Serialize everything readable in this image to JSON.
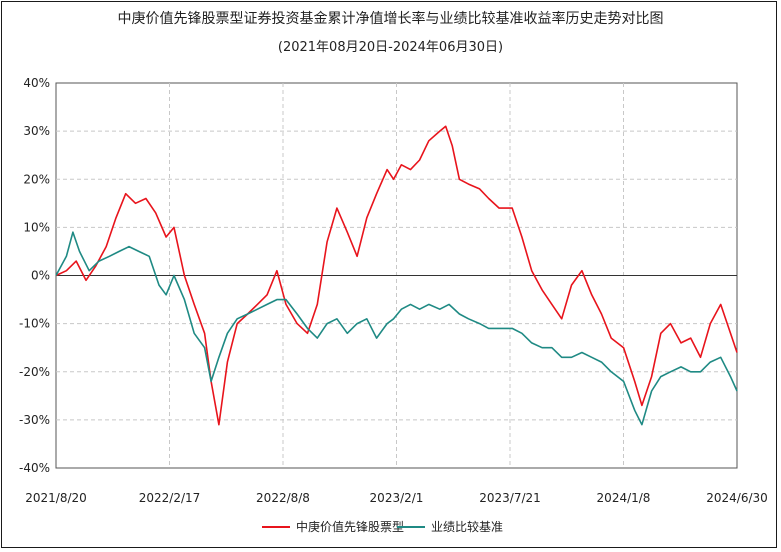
{
  "chart_data": {
    "type": "line",
    "title": "中庚价值先锋股票型证券投资基金累计净值增长率与业绩比较基准收益率历史走势对比图",
    "subtitle": "(2021年08月20日-2024年06月30日)",
    "xlabel": "",
    "ylabel": "",
    "x_ticks": [
      "2021/8/20",
      "2022/2/17",
      "2022/8/8",
      "2023/2/1",
      "2023/7/21",
      "2024/1/8",
      "2024/6/30"
    ],
    "x_range": [
      "2021-08-20",
      "2024-06-30"
    ],
    "y_ticks": [
      "40%",
      "30%",
      "20%",
      "10%",
      "0%",
      "-10%",
      "-20%",
      "-30%",
      "-40%"
    ],
    "ylim": [
      -40,
      40
    ],
    "grid": true,
    "legend_position": "bottom",
    "series": [
      {
        "name": "中庚价值先锋股票型",
        "color": "#e8141c",
        "x": [
          "2021-08-20",
          "2021-09-05",
          "2021-09-20",
          "2021-10-05",
          "2021-10-20",
          "2021-11-05",
          "2021-11-20",
          "2021-12-05",
          "2021-12-20",
          "2022-01-05",
          "2022-01-20",
          "2022-02-05",
          "2022-02-17",
          "2022-03-05",
          "2022-03-20",
          "2022-04-05",
          "2022-04-15",
          "2022-04-27",
          "2022-05-10",
          "2022-05-25",
          "2022-06-10",
          "2022-06-25",
          "2022-07-10",
          "2022-07-25",
          "2022-08-08",
          "2022-08-25",
          "2022-09-10",
          "2022-09-25",
          "2022-10-10",
          "2022-10-25",
          "2022-11-10",
          "2022-11-25",
          "2022-12-10",
          "2022-12-25",
          "2023-01-10",
          "2023-01-20",
          "2023-02-01",
          "2023-02-15",
          "2023-03-01",
          "2023-03-15",
          "2023-04-01",
          "2023-04-10",
          "2023-04-20",
          "2023-05-01",
          "2023-05-15",
          "2023-06-01",
          "2023-06-15",
          "2023-07-01",
          "2023-07-21",
          "2023-08-05",
          "2023-08-20",
          "2023-09-05",
          "2023-09-20",
          "2023-10-05",
          "2023-10-20",
          "2023-11-05",
          "2023-11-20",
          "2023-12-05",
          "2023-12-20",
          "2024-01-08",
          "2024-01-25",
          "2024-02-05",
          "2024-02-20",
          "2024-03-05",
          "2024-03-20",
          "2024-04-05",
          "2024-04-20",
          "2024-05-05",
          "2024-05-20",
          "2024-06-05",
          "2024-06-20",
          "2024-06-30"
        ],
        "values": [
          0,
          1,
          3,
          -1,
          2,
          6,
          12,
          17,
          15,
          16,
          13,
          8,
          10,
          0,
          -6,
          -12,
          -22,
          -31,
          -18,
          -10,
          -8,
          -6,
          -4,
          1,
          -6,
          -10,
          -12,
          -6,
          7,
          14,
          9,
          4,
          12,
          17,
          22,
          20,
          23,
          22,
          24,
          28,
          30,
          31,
          27,
          20,
          19,
          18,
          16,
          14,
          14,
          8,
          1,
          -3,
          -6,
          -9,
          -2,
          1,
          -4,
          -8,
          -13,
          -15,
          -22,
          -27,
          -21,
          -12,
          -10,
          -14,
          -13,
          -17,
          -10,
          -6,
          -12,
          -16
        ]
      },
      {
        "name": "业绩比较基准",
        "color": "#1f8a84",
        "x": [
          "2021-08-20",
          "2021-09-05",
          "2021-09-15",
          "2021-09-25",
          "2021-10-10",
          "2021-10-25",
          "2021-11-10",
          "2021-11-25",
          "2021-12-10",
          "2021-12-25",
          "2022-01-10",
          "2022-01-25",
          "2022-02-05",
          "2022-02-17",
          "2022-03-05",
          "2022-03-20",
          "2022-04-05",
          "2022-04-15",
          "2022-04-27",
          "2022-05-10",
          "2022-05-25",
          "2022-06-10",
          "2022-06-25",
          "2022-07-10",
          "2022-07-25",
          "2022-08-08",
          "2022-08-25",
          "2022-09-10",
          "2022-09-25",
          "2022-10-10",
          "2022-10-25",
          "2022-11-10",
          "2022-11-25",
          "2022-12-10",
          "2022-12-25",
          "2023-01-10",
          "2023-01-20",
          "2023-02-01",
          "2023-02-15",
          "2023-03-01",
          "2023-03-15",
          "2023-04-01",
          "2023-04-15",
          "2023-05-01",
          "2023-05-15",
          "2023-06-01",
          "2023-06-15",
          "2023-07-01",
          "2023-07-21",
          "2023-08-05",
          "2023-08-20",
          "2023-09-05",
          "2023-09-20",
          "2023-10-05",
          "2023-10-20",
          "2023-11-05",
          "2023-11-20",
          "2023-12-05",
          "2023-12-20",
          "2024-01-08",
          "2024-01-25",
          "2024-02-05",
          "2024-02-20",
          "2024-03-05",
          "2024-03-20",
          "2024-04-05",
          "2024-04-20",
          "2024-05-05",
          "2024-05-20",
          "2024-06-05",
          "2024-06-20",
          "2024-06-30"
        ],
        "values": [
          0,
          4,
          9,
          5,
          1,
          3,
          4,
          5,
          6,
          5,
          4,
          -2,
          -4,
          0,
          -5,
          -12,
          -15,
          -22,
          -17,
          -12,
          -9,
          -8,
          -7,
          -6,
          -5,
          -5,
          -8,
          -11,
          -13,
          -10,
          -9,
          -12,
          -10,
          -9,
          -13,
          -10,
          -9,
          -7,
          -6,
          -7,
          -6,
          -7,
          -6,
          -8,
          -9,
          -10,
          -11,
          -11,
          -11,
          -12,
          -14,
          -15,
          -15,
          -17,
          -17,
          -16,
          -17,
          -18,
          -20,
          -22,
          -28,
          -31,
          -24,
          -21,
          -20,
          -19,
          -20,
          -20,
          -18,
          -17,
          -21,
          -24
        ]
      }
    ]
  }
}
